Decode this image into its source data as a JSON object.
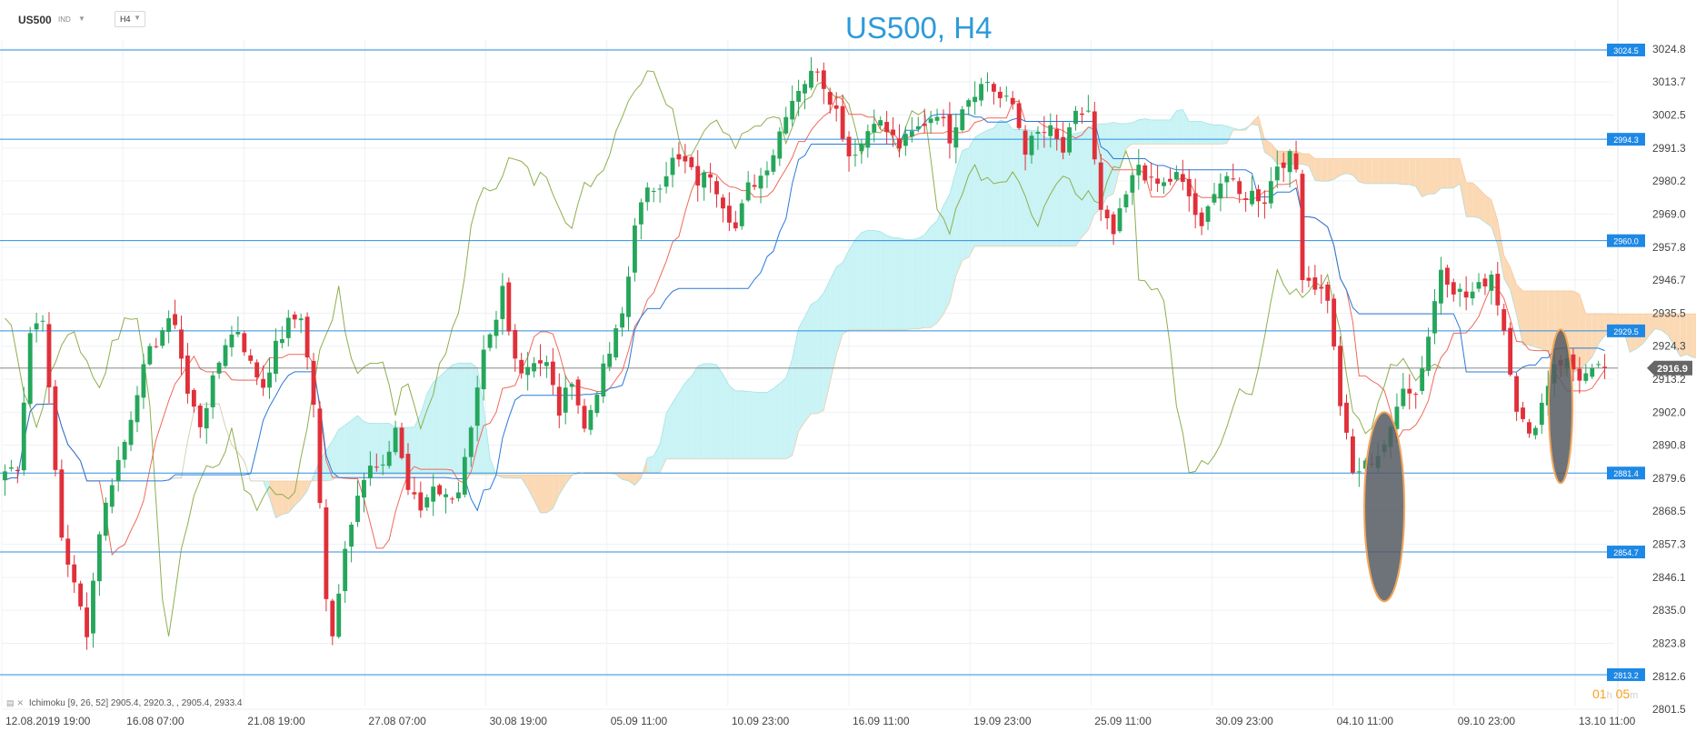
{
  "header": {
    "symbol": "US500",
    "market": "IND",
    "timeframe": "H4",
    "title": "US500, H4"
  },
  "indicator": {
    "label": "Ichimoku",
    "params": "[9, 26, 52] 2905.4,  2920.3,  , 2905.4,  2933.4"
  },
  "countdown": {
    "hours": "01",
    "h": "h",
    "minutes": "05",
    "m": "m"
  },
  "colors": {
    "bull": "#26a65b",
    "bear": "#e0303a",
    "tenkan": "#ef6a5a",
    "kijun": "#2979d9",
    "chikou": "#8fae4e",
    "cloud_bull": "#c9f3f5",
    "cloud_bear": "#fbd9b5",
    "level": "#2e8fe0",
    "grid": "#eef1f4",
    "ellipse": "#555a63"
  },
  "chart_data": {
    "type": "candlestick",
    "title": "US500, H4",
    "ylim": [
      2796,
      3036
    ],
    "y_ticks": [
      3024.8,
      3013.7,
      3002.5,
      2991.3,
      2980.2,
      2969.0,
      2957.8,
      2946.7,
      2935.5,
      2924.3,
      2913.2,
      2902.0,
      2890.8,
      2879.6,
      2868.5,
      2857.3,
      2846.1,
      2835.0,
      2823.8,
      2812.6,
      2801.5
    ],
    "x_labels": [
      "12.08.2019  19:00",
      "16.08  07:00",
      "21.08  19:00",
      "27.08  07:00",
      "30.08  19:00",
      "05.09  11:00",
      "10.09  23:00",
      "16.09  11:00",
      "19.09  23:00",
      "25.09  11:00",
      "30.09  23:00",
      "04.10  11:00",
      "09.10  23:00",
      "13.10  11:00"
    ],
    "current_price": 2916.9,
    "levels": [
      3024.5,
      2994.3,
      2960.0,
      2929.5,
      2881.4,
      2854.7,
      2813.2
    ],
    "series": [
      {
        "name": "US500",
        "anchors": [
          [
            0,
            2882
          ],
          [
            2,
            2884
          ],
          [
            4,
            2929
          ],
          [
            6,
            2935
          ],
          [
            8,
            2882
          ],
          [
            9,
            2860
          ],
          [
            11,
            2843
          ],
          [
            13,
            2828
          ],
          [
            15,
            2862
          ],
          [
            17,
            2879
          ],
          [
            19,
            2892
          ],
          [
            21,
            2910
          ],
          [
            23,
            2922
          ],
          [
            25,
            2930
          ],
          [
            27,
            2933
          ],
          [
            29,
            2908
          ],
          [
            31,
            2898
          ],
          [
            33,
            2912
          ],
          [
            35,
            2926
          ],
          [
            37,
            2930
          ],
          [
            39,
            2918
          ],
          [
            41,
            2911
          ],
          [
            43,
            2924
          ],
          [
            45,
            2932
          ],
          [
            47,
            2935
          ],
          [
            49,
            2905
          ],
          [
            50,
            2870
          ],
          [
            51,
            2838
          ],
          [
            52,
            2828
          ],
          [
            54,
            2856
          ],
          [
            56,
            2876
          ],
          [
            58,
            2883
          ],
          [
            60,
            2882
          ],
          [
            62,
            2897
          ],
          [
            64,
            2876
          ],
          [
            66,
            2869
          ],
          [
            68,
            2878
          ],
          [
            70,
            2873
          ],
          [
            72,
            2876
          ],
          [
            74,
            2895
          ],
          [
            76,
            2921
          ],
          [
            78,
            2932
          ],
          [
            79,
            2944
          ],
          [
            80,
            2929
          ],
          [
            82,
            2916
          ],
          [
            84,
            2920
          ],
          [
            86,
            2918
          ],
          [
            88,
            2902
          ],
          [
            90,
            2914
          ],
          [
            92,
            2896
          ],
          [
            94,
            2910
          ],
          [
            96,
            2922
          ],
          [
            98,
            2935
          ],
          [
            99,
            2948
          ],
          [
            100,
            2967
          ],
          [
            102,
            2976
          ],
          [
            104,
            2980
          ],
          [
            106,
            2987
          ],
          [
            108,
            2986
          ],
          [
            110,
            2980
          ],
          [
            112,
            2983
          ],
          [
            114,
            2973
          ],
          [
            116,
            2964
          ],
          [
            118,
            2978
          ],
          [
            120,
            2982
          ],
          [
            122,
            2990
          ],
          [
            124,
            3004
          ],
          [
            126,
            3012
          ],
          [
            128,
            3016
          ],
          [
            129,
            3019
          ],
          [
            130,
            3013
          ],
          [
            132,
            3004
          ],
          [
            134,
            2989
          ],
          [
            136,
            2993
          ],
          [
            138,
            3002
          ],
          [
            140,
            2997
          ],
          [
            142,
            2992
          ],
          [
            144,
            2996
          ],
          [
            146,
            3000
          ],
          [
            148,
            3004
          ],
          [
            150,
            2995
          ],
          [
            152,
            3006
          ],
          [
            154,
            3011
          ],
          [
            156,
            3014
          ],
          [
            158,
            3008
          ],
          [
            160,
            3006
          ],
          [
            162,
            2991
          ],
          [
            164,
            2996
          ],
          [
            166,
            2997
          ],
          [
            168,
            2990
          ],
          [
            170,
            3002
          ],
          [
            172,
            3004
          ],
          [
            174,
            2969
          ],
          [
            176,
            2962
          ],
          [
            178,
            2975
          ],
          [
            180,
            2986
          ],
          [
            182,
            2979
          ],
          [
            184,
            2979
          ],
          [
            186,
            2982
          ],
          [
            188,
            2975
          ],
          [
            190,
            2963
          ],
          [
            192,
            2978
          ],
          [
            194,
            2982
          ],
          [
            196,
            2975
          ],
          [
            198,
            2976
          ],
          [
            200,
            2974
          ],
          [
            202,
            2986
          ],
          [
            204,
            2988
          ],
          [
            205,
            2984
          ],
          [
            206,
            2949
          ],
          [
            208,
            2945
          ],
          [
            210,
            2941
          ],
          [
            212,
            2905
          ],
          [
            214,
            2881
          ],
          [
            216,
            2884
          ],
          [
            218,
            2888
          ],
          [
            220,
            2895
          ],
          [
            222,
            2912
          ],
          [
            224,
            2908
          ],
          [
            226,
            2928
          ],
          [
            228,
            2951
          ],
          [
            230,
            2944
          ],
          [
            232,
            2941
          ],
          [
            234,
            2944
          ],
          [
            236,
            2949
          ],
          [
            238,
            2930
          ],
          [
            240,
            2904
          ],
          [
            242,
            2893
          ],
          [
            244,
            2905
          ],
          [
            246,
            2919
          ],
          [
            248,
            2919
          ],
          [
            250,
            2914
          ],
          [
            252,
            2915
          ],
          [
            254,
            2917
          ]
        ]
      },
      {
        "name": "Tenkan-sen"
      },
      {
        "name": "Kijun-sen"
      },
      {
        "name": "Chikou Span"
      },
      {
        "name": "Senkou Span A"
      },
      {
        "name": "Senkou Span B"
      }
    ],
    "annotations": [
      {
        "type": "ellipse",
        "x_center": 219,
        "y_center": 2870,
        "y_half_range": 32
      },
      {
        "type": "ellipse",
        "x_center": 247,
        "y_center": 2904,
        "y_half_range": 26
      }
    ]
  }
}
